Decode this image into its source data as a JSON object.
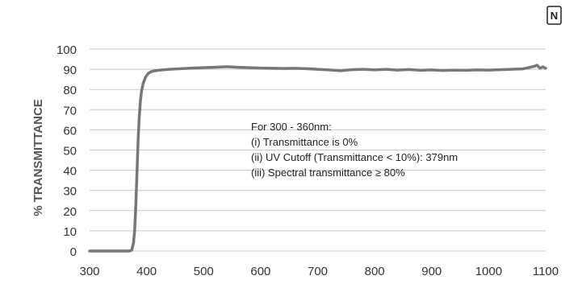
{
  "badge": "N",
  "chart_data": {
    "type": "line",
    "title": "",
    "xlabel": "",
    "ylabel": "% TRANSMITTANCE",
    "xlim": [
      300,
      1100
    ],
    "ylim": [
      0,
      100
    ],
    "x_ticks": [
      300,
      400,
      500,
      600,
      700,
      800,
      900,
      1000,
      1100
    ],
    "y_ticks": [
      0,
      10,
      20,
      30,
      40,
      50,
      60,
      70,
      80,
      90,
      100
    ],
    "grid": true,
    "legend": "none",
    "series": [
      {
        "color": "#777777",
        "points": [
          [
            300,
            0
          ],
          [
            320,
            0
          ],
          [
            340,
            0
          ],
          [
            360,
            0
          ],
          [
            370,
            0
          ],
          [
            374,
            0.5
          ],
          [
            377,
            4
          ],
          [
            379,
            10
          ],
          [
            381,
            22
          ],
          [
            383,
            38
          ],
          [
            385,
            54
          ],
          [
            387,
            66
          ],
          [
            389,
            74
          ],
          [
            391,
            79
          ],
          [
            394,
            83
          ],
          [
            398,
            86
          ],
          [
            403,
            88
          ],
          [
            410,
            89
          ],
          [
            420,
            89.5
          ],
          [
            440,
            90
          ],
          [
            460,
            90.3
          ],
          [
            480,
            90.6
          ],
          [
            500,
            90.8
          ],
          [
            520,
            91
          ],
          [
            540,
            91.3
          ],
          [
            560,
            91
          ],
          [
            580,
            90.8
          ],
          [
            600,
            90.6
          ],
          [
            620,
            90.5
          ],
          [
            640,
            90.4
          ],
          [
            660,
            90.5
          ],
          [
            680,
            90.3
          ],
          [
            700,
            90
          ],
          [
            720,
            89.7
          ],
          [
            740,
            89.3
          ],
          [
            760,
            89.8
          ],
          [
            780,
            90
          ],
          [
            800,
            89.7
          ],
          [
            820,
            90
          ],
          [
            840,
            89.6
          ],
          [
            860,
            89.9
          ],
          [
            880,
            89.5
          ],
          [
            900,
            89.7
          ],
          [
            920,
            89.4
          ],
          [
            940,
            89.6
          ],
          [
            960,
            89.5
          ],
          [
            980,
            89.7
          ],
          [
            1000,
            89.6
          ],
          [
            1020,
            89.8
          ],
          [
            1040,
            90
          ],
          [
            1060,
            90.2
          ],
          [
            1070,
            90.8
          ],
          [
            1080,
            91.5
          ],
          [
            1085,
            92
          ],
          [
            1090,
            90.5
          ],
          [
            1095,
            91.2
          ],
          [
            1100,
            90.5
          ]
        ]
      }
    ],
    "annotation": {
      "lines": [
        "For 300 - 360nm:",
        "(i) Transmittance is 0%",
        "(ii) UV Cutoff (Transmittance < 10%): 379nm",
        "(iii) Spectral transmittance ≥ 80%"
      ]
    }
  }
}
